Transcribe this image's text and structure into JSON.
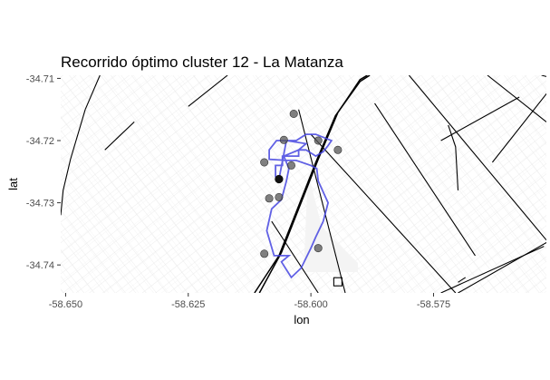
{
  "title": "Recorrido óptimo cluster 12 - La Matanza",
  "chart_data": {
    "type": "scatter",
    "title": "Recorrido óptimo cluster 12 - La Matanza",
    "xlabel": "lon",
    "ylabel": "lat",
    "xlim": [
      -58.651,
      -58.552
    ],
    "ylim": [
      -34.7445,
      -34.7095
    ],
    "xticks": [
      -58.65,
      -58.625,
      -58.6,
      -58.575
    ],
    "xtick_labels": [
      "-58.650",
      "-58.625",
      "-58.600",
      "-58.575"
    ],
    "yticks": [
      -34.71,
      -34.72,
      -34.73,
      -34.74
    ],
    "ytick_labels": [
      "-34.71",
      "-34.72",
      "-34.73",
      "-34.74"
    ],
    "grid": false,
    "background": "street basemap",
    "points": {
      "x": [
        -58.6035,
        -58.6055,
        -58.5985,
        -58.5945,
        -58.6095,
        -58.604,
        -58.6065,
        -58.6085,
        -58.6065,
        -58.6095,
        -58.5985
      ],
      "y": [
        -34.7157,
        -34.7199,
        -34.72,
        -34.7215,
        -34.7235,
        -34.724,
        -34.7262,
        -34.7293,
        -34.7291,
        -34.7382,
        -34.7373
      ],
      "color": "#555555"
    },
    "start_point": {
      "x": -58.6065,
      "y": -34.7262,
      "color": "#111111"
    },
    "end_marker": {
      "x": -58.5945,
      "y": -34.7427,
      "shape": "square"
    },
    "route": {
      "color": "#4545e0",
      "x": [
        -58.6065,
        -58.6072,
        -58.6072,
        -58.6058,
        -58.6058,
        -58.6025,
        -58.6025,
        -58.601,
        -58.599,
        -58.5975,
        -58.5965,
        -58.5958,
        -58.599,
        -58.601,
        -58.603,
        -58.605,
        -58.607,
        -58.6085,
        -58.6085,
        -58.605,
        -58.603,
        -58.6,
        -58.5988,
        -58.5985,
        -58.5965,
        -58.5975,
        -58.599,
        -58.6,
        -58.602,
        -58.604,
        -58.606,
        -58.6045,
        -58.6075,
        -58.609,
        -58.608,
        -58.606,
        -58.605,
        -58.6045,
        -58.6055,
        -58.6025,
        -58.601,
        -58.605,
        -58.6065
      ],
      "y": [
        -34.7262,
        -34.7258,
        -34.724,
        -34.724,
        -34.7225,
        -34.7225,
        -34.7215,
        -34.7215,
        -34.7225,
        -34.7218,
        -34.7208,
        -34.72,
        -34.719,
        -34.719,
        -34.72,
        -34.72,
        -34.72,
        -34.7215,
        -34.723,
        -34.7232,
        -34.7232,
        -34.724,
        -34.7245,
        -34.7265,
        -34.73,
        -34.733,
        -34.7355,
        -34.7373,
        -34.7405,
        -34.742,
        -34.7395,
        -34.7385,
        -34.7385,
        -34.7345,
        -34.731,
        -34.7295,
        -34.7265,
        -34.7245,
        -34.7225,
        -34.7215,
        -34.7205,
        -34.72,
        -34.7262
      ]
    },
    "roads": [
      {
        "kind": "major",
        "x": [
          -58.6115,
          -58.6065,
          -58.603,
          -58.599,
          -58.595,
          -58.59,
          -58.588
        ],
        "y": [
          -34.7445,
          -34.7385,
          -34.7315,
          -34.7235,
          -34.716,
          -34.7105,
          -34.7095
        ]
      },
      {
        "kind": "major",
        "x": [
          -58.6105,
          -58.606,
          -58.6025,
          -58.5985,
          -58.5945,
          -58.59,
          -58.5885
        ],
        "y": [
          -34.7445,
          -34.738,
          -34.731,
          -34.723,
          -34.7155,
          -34.7102,
          -34.7095
        ]
      },
      {
        "kind": "minor",
        "x": [
          -58.6025,
          -58.593
        ],
        "y": [
          -34.715,
          -34.7445
        ]
      },
      {
        "kind": "minor",
        "x": [
          -58.608,
          -58.5985
        ],
        "y": [
          -34.733,
          -34.7445
        ]
      },
      {
        "kind": "minor",
        "x": [
          -58.6,
          -58.5705
        ],
        "y": [
          -34.719,
          -34.7445
        ]
      },
      {
        "kind": "minor",
        "x": [
          -58.587,
          -58.5665
        ],
        "y": [
          -34.714,
          -34.7385
        ]
      },
      {
        "kind": "minor",
        "x": [
          -58.58,
          -58.552
        ],
        "y": [
          -34.7095,
          -34.736
        ]
      },
      {
        "kind": "minor",
        "x": [
          -58.564,
          -58.552
        ],
        "y": [
          -34.7095,
          -34.717
        ]
      },
      {
        "kind": "minor",
        "x": [
          -58.553,
          -58.552
        ],
        "y": [
          -34.7095,
          -34.7097
        ]
      },
      {
        "kind": "minor",
        "x": [
          -58.549,
          -58.563
        ],
        "y": [
          -34.7095,
          -34.7235
        ]
      },
      {
        "kind": "minor",
        "x": [
          -58.5735,
          -58.5575
        ],
        "y": [
          -34.72,
          -34.713
        ]
      },
      {
        "kind": "minor",
        "x": [
          -58.5525,
          -58.5735
        ],
        "y": [
          -34.737,
          -34.7445
        ]
      },
      {
        "kind": "minor",
        "x": [
          -58.55,
          -58.57
        ],
        "y": [
          -34.7355,
          -34.7445
        ]
      },
      {
        "kind": "minor",
        "x": [
          -58.651,
          -58.6505,
          -58.649,
          -58.646
        ],
        "y": [
          -34.732,
          -34.728,
          -34.723,
          -34.715
        ]
      },
      {
        "kind": "minor",
        "x": [
          -58.646,
          -58.643
        ],
        "y": [
          -34.715,
          -34.7095
        ]
      },
      {
        "kind": "minor",
        "x": [
          -58.642,
          -58.636
        ],
        "y": [
          -34.7215,
          -34.717
        ]
      },
      {
        "kind": "minor",
        "x": [
          -58.625,
          -58.617
        ],
        "y": [
          -34.7145,
          -34.7095
        ]
      },
      {
        "kind": "minor",
        "x": [
          -58.572,
          -58.5705,
          -58.57
        ],
        "y": [
          -34.7175,
          -34.721,
          -34.728
        ]
      },
      {
        "kind": "minor",
        "x": [
          -58.5685,
          -58.57
        ],
        "y": [
          -34.742,
          -34.7428
        ]
      }
    ]
  }
}
